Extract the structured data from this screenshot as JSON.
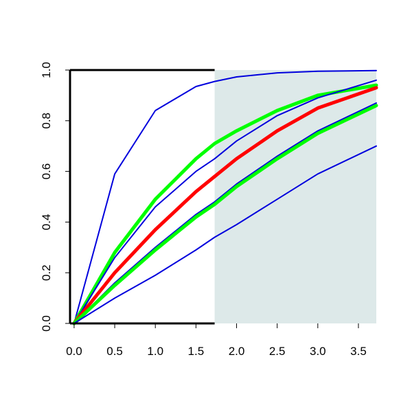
{
  "chart_data": {
    "type": "line",
    "title": "",
    "xlabel": "",
    "ylabel": "",
    "xlim": [
      -0.05,
      3.72
    ],
    "ylim": [
      0,
      1
    ],
    "x_ticks": [
      "0.0",
      "0.5",
      "1.0",
      "1.5",
      "2.0",
      "2.5",
      "3.0",
      "3.5"
    ],
    "y_ticks": [
      "0.0",
      "0.2",
      "0.4",
      "0.6",
      "0.8",
      "1.0"
    ],
    "shaded_region": {
      "x_from": 1.73,
      "x_to": 3.72,
      "color": "#dde9e9"
    },
    "series": [
      {
        "color": "#0000dd",
        "points": [
          [
            0,
            0
          ],
          [
            0.5,
            0.59
          ],
          [
            1,
            0.84
          ],
          [
            1.5,
            0.935
          ],
          [
            1.73,
            0.955
          ],
          [
            2,
            0.973
          ],
          [
            2.5,
            0.989
          ],
          [
            3,
            0.995
          ],
          [
            3.72,
            0.998
          ]
        ]
      },
      {
        "color": "#00ff00",
        "points": [
          [
            0,
            0
          ],
          [
            0.5,
            0.28
          ],
          [
            1,
            0.49
          ],
          [
            1.5,
            0.65
          ],
          [
            1.73,
            0.71
          ],
          [
            2,
            0.76
          ],
          [
            2.5,
            0.84
          ],
          [
            3,
            0.9
          ],
          [
            3.72,
            0.94
          ]
        ]
      },
      {
        "color": "#0000dd",
        "points": [
          [
            0,
            0
          ],
          [
            0.5,
            0.26
          ],
          [
            1,
            0.46
          ],
          [
            1.5,
            0.6
          ],
          [
            1.73,
            0.65
          ],
          [
            2,
            0.72
          ],
          [
            2.5,
            0.82
          ],
          [
            3,
            0.89
          ],
          [
            3.72,
            0.96
          ]
        ]
      },
      {
        "color": "#ff0000",
        "points": [
          [
            0,
            0
          ],
          [
            0.5,
            0.2
          ],
          [
            1,
            0.37
          ],
          [
            1.5,
            0.52
          ],
          [
            1.73,
            0.58
          ],
          [
            2,
            0.65
          ],
          [
            2.5,
            0.76
          ],
          [
            3,
            0.85
          ],
          [
            3.72,
            0.93
          ]
        ]
      },
      {
        "color": "#0000dd",
        "points": [
          [
            0,
            0
          ],
          [
            0.5,
            0.16
          ],
          [
            1,
            0.3
          ],
          [
            1.5,
            0.43
          ],
          [
            1.73,
            0.48
          ],
          [
            2,
            0.55
          ],
          [
            2.5,
            0.66
          ],
          [
            3,
            0.76
          ],
          [
            3.72,
            0.87
          ]
        ]
      },
      {
        "color": "#00ff00",
        "points": [
          [
            0,
            0
          ],
          [
            0.5,
            0.15
          ],
          [
            1,
            0.29
          ],
          [
            1.5,
            0.42
          ],
          [
            1.73,
            0.47
          ],
          [
            2,
            0.54
          ],
          [
            2.5,
            0.65
          ],
          [
            3,
            0.75
          ],
          [
            3.72,
            0.86
          ]
        ]
      },
      {
        "color": "#0000dd",
        "points": [
          [
            0,
            0
          ],
          [
            0.5,
            0.1
          ],
          [
            1,
            0.19
          ],
          [
            1.5,
            0.29
          ],
          [
            1.73,
            0.34
          ],
          [
            2,
            0.39
          ],
          [
            2.5,
            0.49
          ],
          [
            3,
            0.59
          ],
          [
            3.72,
            0.7
          ]
        ]
      }
    ]
  }
}
